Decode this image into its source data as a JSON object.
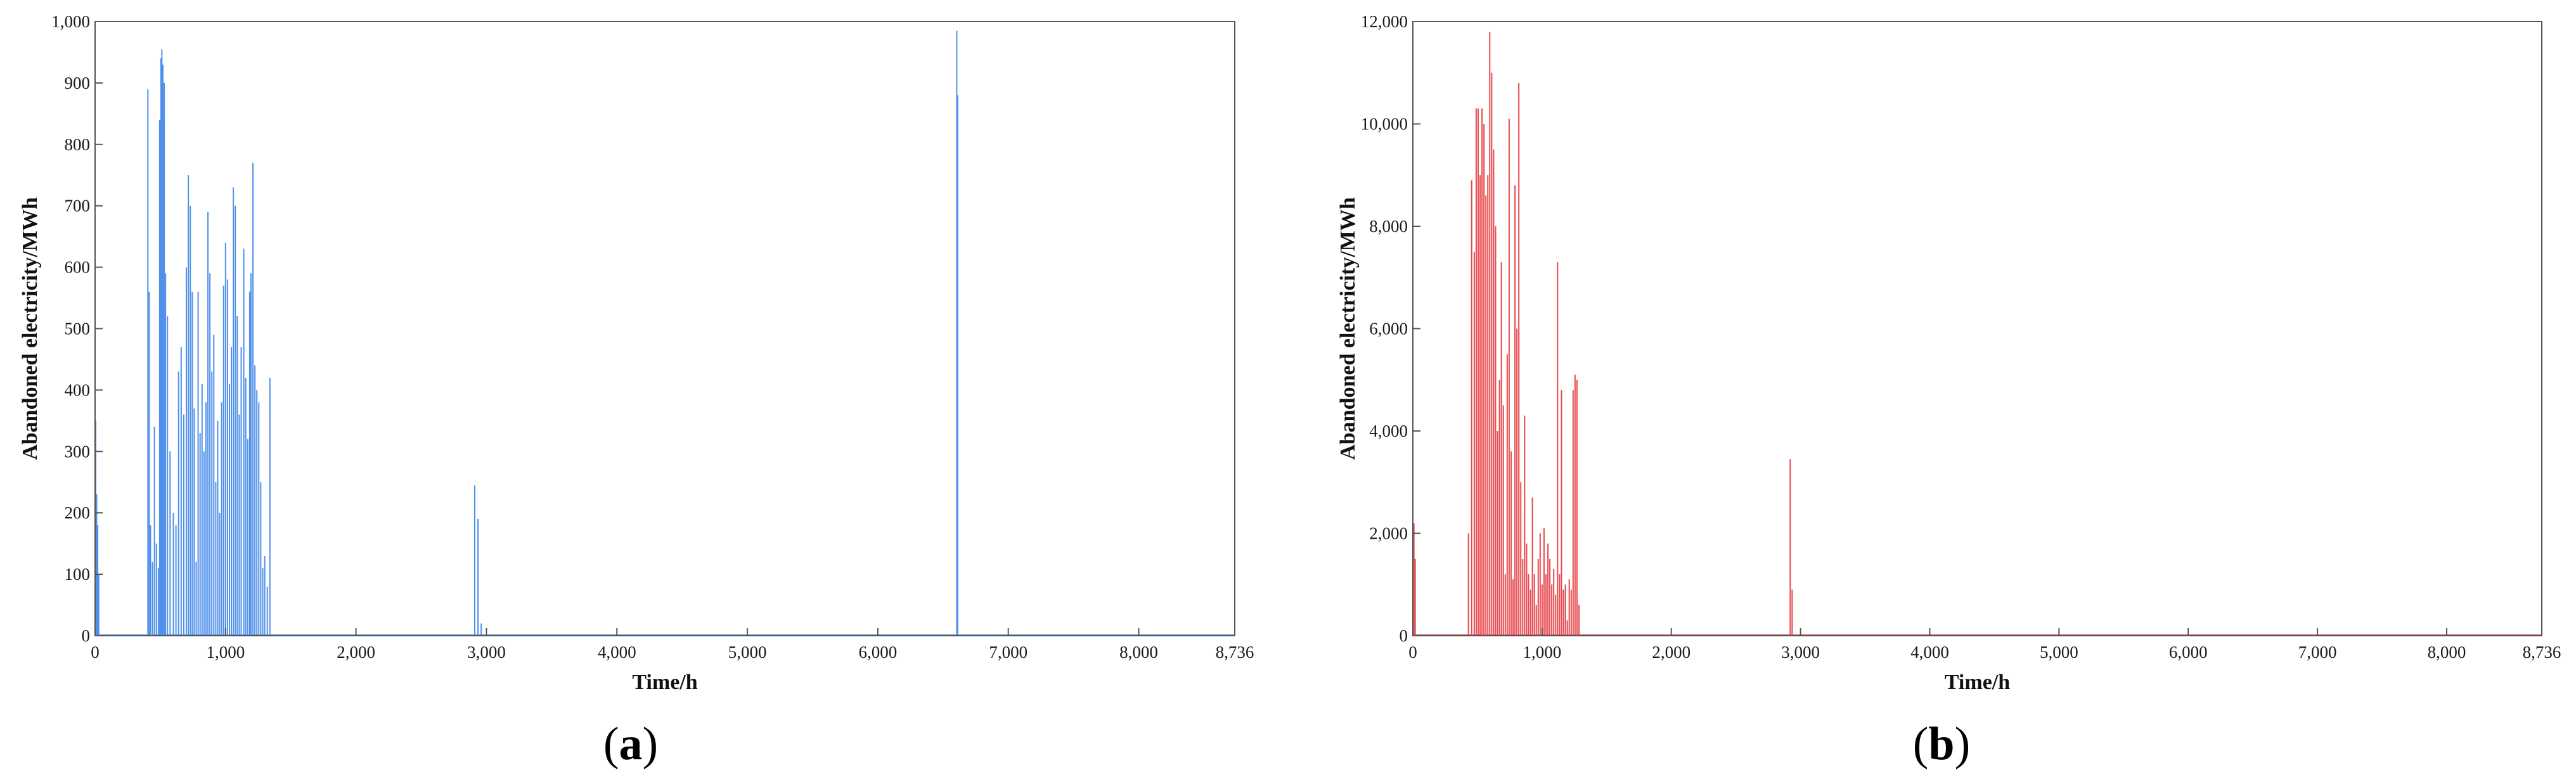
{
  "chart_data": [
    {
      "type": "line",
      "panel_label": "a",
      "xlabel": "Time/h",
      "ylabel": "Abandoned electricity/MWh",
      "xlim": [
        0,
        8736
      ],
      "ylim": [
        0,
        1000
      ],
      "x_ticks": [
        0,
        1000,
        2000,
        3000,
        4000,
        5000,
        6000,
        7000,
        8000,
        8736
      ],
      "x_tick_labels": [
        "0",
        "1,000",
        "2,000",
        "3,000",
        "4,000",
        "5,000",
        "6,000",
        "7,000",
        "8,000",
        "8,736"
      ],
      "y_ticks": [
        0,
        100,
        200,
        300,
        400,
        500,
        600,
        700,
        800,
        900,
        1000
      ],
      "y_tick_labels": [
        "0",
        "100",
        "200",
        "300",
        "400",
        "500",
        "600",
        "700",
        "800",
        "900",
        "1,000"
      ],
      "grid": false,
      "color": "#4e8fea",
      "spikes": [
        [
          5,
          350
        ],
        [
          12,
          230
        ],
        [
          20,
          180
        ],
        [
          28,
          100
        ],
        [
          405,
          890
        ],
        [
          415,
          560
        ],
        [
          425,
          180
        ],
        [
          440,
          120
        ],
        [
          455,
          340
        ],
        [
          470,
          150
        ],
        [
          485,
          110
        ],
        [
          495,
          840
        ],
        [
          505,
          940
        ],
        [
          512,
          955
        ],
        [
          520,
          930
        ],
        [
          530,
          900
        ],
        [
          540,
          590
        ],
        [
          555,
          520
        ],
        [
          575,
          300
        ],
        [
          600,
          200
        ],
        [
          620,
          180
        ],
        [
          640,
          430
        ],
        [
          660,
          470
        ],
        [
          680,
          360
        ],
        [
          700,
          600
        ],
        [
          715,
          750
        ],
        [
          730,
          700
        ],
        [
          745,
          560
        ],
        [
          760,
          370
        ],
        [
          775,
          120
        ],
        [
          790,
          560
        ],
        [
          805,
          330
        ],
        [
          820,
          410
        ],
        [
          835,
          300
        ],
        [
          850,
          380
        ],
        [
          865,
          690
        ],
        [
          880,
          590
        ],
        [
          895,
          430
        ],
        [
          910,
          490
        ],
        [
          925,
          250
        ],
        [
          940,
          350
        ],
        [
          955,
          200
        ],
        [
          970,
          380
        ],
        [
          985,
          570
        ],
        [
          1000,
          640
        ],
        [
          1015,
          580
        ],
        [
          1030,
          410
        ],
        [
          1045,
          470
        ],
        [
          1060,
          730
        ],
        [
          1075,
          700
        ],
        [
          1090,
          520
        ],
        [
          1105,
          360
        ],
        [
          1120,
          470
        ],
        [
          1140,
          630
        ],
        [
          1155,
          420
        ],
        [
          1170,
          320
        ],
        [
          1185,
          560
        ],
        [
          1195,
          590
        ],
        [
          1210,
          770
        ],
        [
          1225,
          440
        ],
        [
          1240,
          400
        ],
        [
          1255,
          380
        ],
        [
          1270,
          250
        ],
        [
          1285,
          110
        ],
        [
          1300,
          130
        ],
        [
          1320,
          80
        ],
        [
          1340,
          420
        ],
        [
          2910,
          245
        ],
        [
          2935,
          190
        ],
        [
          2960,
          20
        ],
        [
          6605,
          985
        ],
        [
          6612,
          880
        ]
      ]
    },
    {
      "type": "line",
      "panel_label": "b",
      "xlabel": "Time/h",
      "ylabel": "Abandoned electricity/MWh",
      "xlim": [
        0,
        8736
      ],
      "ylim": [
        0,
        12000
      ],
      "x_ticks": [
        0,
        1000,
        2000,
        3000,
        4000,
        5000,
        6000,
        7000,
        8000,
        8736
      ],
      "x_tick_labels": [
        "0",
        "1,000",
        "2,000",
        "3,000",
        "4,000",
        "5,000",
        "6,000",
        "7,000",
        "8,000",
        "8,736"
      ],
      "y_ticks": [
        0,
        2000,
        4000,
        6000,
        8000,
        10000,
        12000
      ],
      "y_tick_labels": [
        "0",
        "2,000",
        "4,000",
        "6,000",
        "8,000",
        "10,000",
        "12,000"
      ],
      "grid": false,
      "color": "#e8474c",
      "spikes": [
        [
          8,
          2200
        ],
        [
          18,
          1500
        ],
        [
          430,
          2000
        ],
        [
          455,
          8900
        ],
        [
          475,
          7500
        ],
        [
          490,
          10300
        ],
        [
          505,
          10300
        ],
        [
          520,
          9000
        ],
        [
          535,
          10300
        ],
        [
          550,
          10000
        ],
        [
          565,
          8600
        ],
        [
          580,
          9000
        ],
        [
          595,
          11800
        ],
        [
          610,
          11000
        ],
        [
          625,
          9500
        ],
        [
          640,
          8000
        ],
        [
          655,
          4000
        ],
        [
          670,
          5000
        ],
        [
          685,
          7300
        ],
        [
          700,
          4500
        ],
        [
          715,
          1200
        ],
        [
          730,
          5500
        ],
        [
          745,
          10100
        ],
        [
          760,
          3600
        ],
        [
          775,
          1100
        ],
        [
          790,
          8800
        ],
        [
          805,
          6000
        ],
        [
          820,
          10800
        ],
        [
          835,
          3000
        ],
        [
          850,
          1500
        ],
        [
          865,
          4300
        ],
        [
          880,
          1800
        ],
        [
          895,
          1200
        ],
        [
          910,
          900
        ],
        [
          925,
          2700
        ],
        [
          940,
          1200
        ],
        [
          955,
          600
        ],
        [
          970,
          1500
        ],
        [
          985,
          2000
        ],
        [
          1000,
          1000
        ],
        [
          1015,
          2100
        ],
        [
          1030,
          1200
        ],
        [
          1045,
          1800
        ],
        [
          1060,
          1500
        ],
        [
          1075,
          1000
        ],
        [
          1090,
          1300
        ],
        [
          1105,
          800
        ],
        [
          1120,
          7300
        ],
        [
          1135,
          1200
        ],
        [
          1150,
          4800
        ],
        [
          1165,
          900
        ],
        [
          1180,
          1000
        ],
        [
          1195,
          300
        ],
        [
          1210,
          1100
        ],
        [
          1225,
          900
        ],
        [
          1240,
          4800
        ],
        [
          1255,
          5100
        ],
        [
          1270,
          5000
        ],
        [
          1285,
          600
        ],
        [
          2920,
          3450
        ],
        [
          2935,
          900
        ]
      ]
    }
  ]
}
